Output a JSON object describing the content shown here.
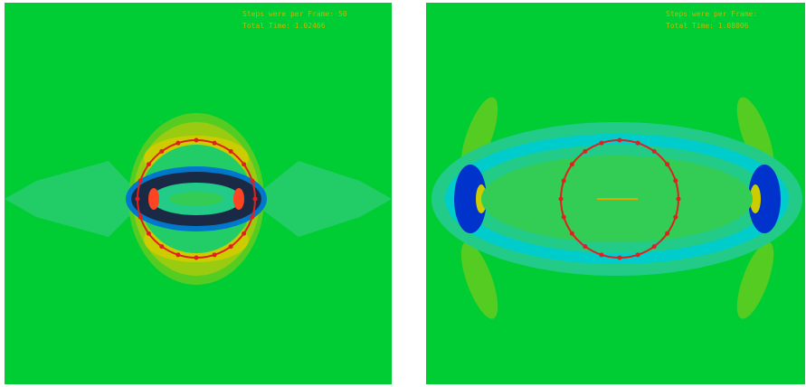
{
  "panels": [
    {
      "steps": "Steps were per Frame: 50",
      "time": "Total Time: 1.02466"
    },
    {
      "steps": "Steps were per Frame: ",
      "time": "Total Time: 1.08006"
    }
  ]
}
